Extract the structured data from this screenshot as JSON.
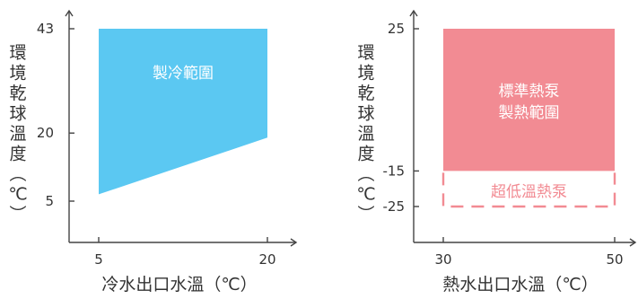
{
  "chart_data": [
    {
      "type": "area",
      "xlabel": "冷水出口水溫（℃）",
      "ylabel": "環境乾球溫度（℃）",
      "x_ticks": [
        5,
        20
      ],
      "y_ticks": [
        5,
        20,
        43
      ],
      "xlim": [
        5,
        20
      ],
      "ylim": [
        5,
        43
      ],
      "regions": [
        {
          "name": "製冷範圍",
          "color": "#5bc8f2",
          "label_color": "#ffffff",
          "style": "solid",
          "polygon": [
            [
              5,
              43
            ],
            [
              20,
              43
            ],
            [
              20,
              19
            ],
            [
              5,
              6.5
            ]
          ]
        }
      ]
    },
    {
      "type": "area",
      "xlabel": "熱水出口水溫（℃）",
      "ylabel": "環境乾球溫度（℃）",
      "x_ticks": [
        30,
        50
      ],
      "y_ticks": [
        25,
        -15,
        -25
      ],
      "xlim": [
        30,
        50
      ],
      "ylim": [
        -25,
        25
      ],
      "regions": [
        {
          "name": "標準熱泵\n製熱範圍",
          "color": "#f28b93",
          "label_color": "#ffffff",
          "style": "solid",
          "polygon": [
            [
              30,
              25
            ],
            [
              50,
              25
            ],
            [
              50,
              -15
            ],
            [
              30,
              -15
            ]
          ]
        },
        {
          "name": "超低溫熱泵",
          "color": "#f28b93",
          "label_color": "#f28b93",
          "style": "dashed",
          "polygon": [
            [
              30,
              -15
            ],
            [
              50,
              -15
            ],
            [
              50,
              -25
            ],
            [
              30,
              -25
            ]
          ]
        }
      ]
    }
  ]
}
